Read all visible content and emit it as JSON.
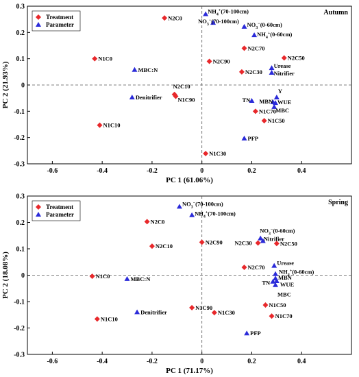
{
  "colors": {
    "treatment": "#e8282b",
    "parameter": "#2b2bd9",
    "axis": "#000000",
    "zero_line": "#555555"
  },
  "chart_data": [
    {
      "type": "scatter",
      "title": "Autumn",
      "xlabel": "PC 1 (61.06%)",
      "ylabel": "PC 2 (21.93%)",
      "xlim": [
        -0.7,
        0.6
      ],
      "ylim": [
        -0.3,
        0.3
      ],
      "xticks": [
        -0.6,
        -0.4,
        -0.2,
        0,
        0.2,
        0.4
      ],
      "xtick_labels": [
        "-0.6",
        "-0.4",
        "-0.2",
        "0",
        "0.2",
        "0.4"
      ],
      "yticks": [
        -0.3,
        -0.2,
        -0.1,
        0,
        0.1,
        0.2,
        0.3
      ],
      "ytick_labels": [
        "-0.3",
        "-0.2",
        "-0.1",
        "0",
        "0.1",
        "0.2",
        "0.3"
      ],
      "legend": {
        "position": "top-left",
        "entries": [
          "Treatment",
          "Parameter"
        ]
      },
      "series": [
        {
          "name": "Treatment",
          "marker": "diamond",
          "points": [
            {
              "label": "N2C0",
              "x": -0.15,
              "y": 0.255
            },
            {
              "label": "N1C0",
              "x": -0.43,
              "y": 0.1
            },
            {
              "label": "N2C90",
              "x": 0.03,
              "y": 0.09
            },
            {
              "label": "N2C70",
              "x": 0.17,
              "y": 0.14
            },
            {
              "label": "N2C50",
              "x": 0.33,
              "y": 0.103
            },
            {
              "label": "N2C30",
              "x": 0.16,
              "y": 0.05
            },
            {
              "label": "N2C10",
              "x": -0.11,
              "y": -0.036
            },
            {
              "label": "N1C90",
              "x": -0.105,
              "y": -0.043
            },
            {
              "label": "N1C10",
              "x": -0.41,
              "y": -0.153
            },
            {
              "label": "N1C70",
              "x": 0.215,
              "y": -0.1
            },
            {
              "label": "N1C50",
              "x": 0.25,
              "y": -0.136
            },
            {
              "label": "N1C30",
              "x": 0.015,
              "y": -0.261
            }
          ]
        },
        {
          "name": "Parameter",
          "marker": "triangle",
          "points": [
            {
              "label": "NH4+(70-100cm)",
              "x": 0.015,
              "y": 0.27
            },
            {
              "label": "NO3-(70-100cm)",
              "x": 0.045,
              "y": 0.237
            },
            {
              "label": "NO3-(0-60cm)",
              "x": 0.17,
              "y": 0.222
            },
            {
              "label": "NH4+(0-60cm)",
              "x": 0.21,
              "y": 0.19
            },
            {
              "label": "MBC:N",
              "x": -0.27,
              "y": 0.058
            },
            {
              "label": "Urease",
              "x": 0.28,
              "y": 0.065
            },
            {
              "label": "Nitrifier",
              "x": 0.28,
              "y": 0.047
            },
            {
              "label": "Denitrifier",
              "x": -0.28,
              "y": -0.047
            },
            {
              "label": "TN",
              "x": 0.2,
              "y": -0.06
            },
            {
              "label": "Y",
              "x": 0.3,
              "y": -0.047
            },
            {
              "label": "MBN",
              "x": 0.285,
              "y": -0.065
            },
            {
              "label": "WUE",
              "x": 0.295,
              "y": -0.068
            },
            {
              "label": "MBC",
              "x": 0.29,
              "y": -0.083
            },
            {
              "label": "PFP",
              "x": 0.17,
              "y": -0.203
            }
          ]
        }
      ]
    },
    {
      "type": "scatter",
      "title": "Spring",
      "xlabel": "PC 1 (71.17%)",
      "ylabel": "PC 2 (18.08%)",
      "xlim": [
        -0.7,
        0.6
      ],
      "ylim": [
        -0.3,
        0.3
      ],
      "xticks": [
        -0.6,
        -0.4,
        -0.2,
        0,
        0.2,
        0.4
      ],
      "xtick_labels": [
        "-0.6",
        "-0.4",
        "-0.2",
        "0",
        "0.2",
        "0.4"
      ],
      "yticks": [
        -0.3,
        -0.2,
        -0.1,
        0,
        0.1,
        0.2,
        0.3
      ],
      "ytick_labels": [
        "-0.3",
        "-0.2",
        "-0.1",
        "0",
        "0.1",
        "0.2",
        "0.3"
      ],
      "legend": {
        "position": "top-left",
        "entries": [
          "Treatment",
          "Parameter"
        ]
      },
      "series": [
        {
          "name": "Treatment",
          "marker": "diamond",
          "points": [
            {
              "label": "N2C0",
              "x": -0.22,
              "y": 0.203
            },
            {
              "label": "N2C10",
              "x": -0.2,
              "y": 0.11
            },
            {
              "label": "N2C90",
              "x": 0.0,
              "y": 0.125
            },
            {
              "label": "N2C30",
              "x": 0.225,
              "y": 0.122
            },
            {
              "label": "N2C50",
              "x": 0.3,
              "y": 0.12
            },
            {
              "label": "N2C70",
              "x": 0.17,
              "y": 0.03
            },
            {
              "label": "N1C0",
              "x": -0.44,
              "y": -0.004
            },
            {
              "label": "N1C90",
              "x": -0.04,
              "y": -0.123
            },
            {
              "label": "N1C30",
              "x": 0.05,
              "y": -0.142
            },
            {
              "label": "N1C10",
              "x": -0.42,
              "y": -0.166
            },
            {
              "label": "N1C50",
              "x": 0.255,
              "y": -0.113
            },
            {
              "label": "N1C70",
              "x": 0.28,
              "y": -0.155
            }
          ]
        },
        {
          "name": "Parameter",
          "marker": "triangle",
          "points": [
            {
              "label": "NO3-(70-100cm)",
              "x": -0.09,
              "y": 0.26
            },
            {
              "label": "NH4+(70-100cm)",
              "x": -0.04,
              "y": 0.228
            },
            {
              "label": "NO3-(0-60cm)",
              "x": 0.235,
              "y": 0.14
            },
            {
              "label": "Nitrifier",
              "x": 0.245,
              "y": 0.13
            },
            {
              "label": "Urease",
              "x": 0.29,
              "y": 0.036
            },
            {
              "label": "NH4+(0-60cm)",
              "x": 0.295,
              "y": 0.005
            },
            {
              "label": "MBN",
              "x": 0.295,
              "y": -0.012
            },
            {
              "label": "TN",
              "x": 0.285,
              "y": -0.024
            },
            {
              "label": "WUE",
              "x": 0.3,
              "y": -0.022
            },
            {
              "label": "MBC",
              "x": 0.295,
              "y": -0.037
            },
            {
              "label": "MBC:N",
              "x": -0.3,
              "y": -0.014
            },
            {
              "label": "Denitrifier",
              "x": -0.26,
              "y": -0.14
            },
            {
              "label": "PFP",
              "x": 0.18,
              "y": -0.22
            }
          ]
        }
      ]
    }
  ]
}
